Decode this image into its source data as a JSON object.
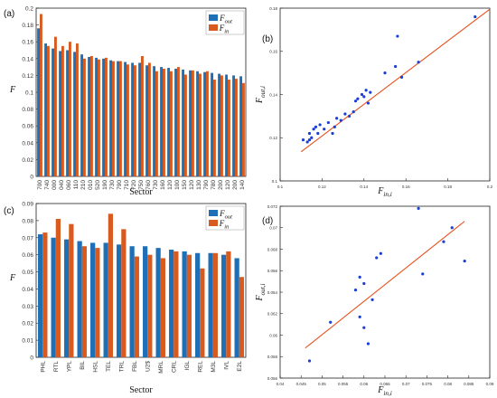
{
  "colors": {
    "out": "#1f6fb6",
    "in": "#d85a1e",
    "fit": "#e8501c",
    "point": "#1a3fd6"
  },
  "legend": {
    "out_base": "F",
    "out_sub": "out",
    "in_base": "F",
    "in_sub": "in"
  },
  "chart_data": [
    {
      "panel": "(a)",
      "type": "bar",
      "xlabel": "Sector",
      "ylabel": "F",
      "ylim": [
        0,
        0.2
      ],
      "yticks": [
        "0",
        "0.02",
        "0.04",
        "0.06",
        "0.08",
        "0.1",
        "0.12",
        "0.14",
        "0.16",
        "0.18",
        "0.2"
      ],
      "legend_position": "top-right",
      "grid": false,
      "categories": [
        "700",
        "740",
        "000",
        "040",
        "060",
        "110",
        "210",
        "010",
        "520",
        "190",
        "730",
        "790",
        "710",
        "720",
        "750",
        "760",
        "730",
        "160",
        "120",
        "100",
        "150",
        "120",
        "130",
        "790",
        "780",
        "200",
        "120",
        "200",
        "140"
      ],
      "series": [
        {
          "name": "F_out",
          "values": [
            0.176,
            0.158,
            0.152,
            0.149,
            0.15,
            0.148,
            0.145,
            0.142,
            0.141,
            0.14,
            0.138,
            0.137,
            0.136,
            0.135,
            0.135,
            0.132,
            0.131,
            0.13,
            0.129,
            0.128,
            0.127,
            0.126,
            0.125,
            0.124,
            0.123,
            0.122,
            0.121,
            0.12,
            0.119
          ]
        },
        {
          "name": "F_in",
          "values": [
            0.193,
            0.155,
            0.166,
            0.155,
            0.16,
            0.158,
            0.14,
            0.143,
            0.139,
            0.141,
            0.137,
            0.137,
            0.133,
            0.132,
            0.143,
            0.135,
            0.125,
            0.128,
            0.125,
            0.13,
            0.121,
            0.126,
            0.122,
            0.125,
            0.115,
            0.12,
            0.115,
            0.116,
            0.111
          ]
        }
      ]
    },
    {
      "panel": "(b)",
      "type": "scatter",
      "xlabel_base": "F",
      "xlabel_sub": "in,i",
      "ylabel_base": "F",
      "ylabel_sub": "out,i",
      "xlim": [
        0.1,
        0.2
      ],
      "ylim": [
        0.1,
        0.18
      ],
      "xticks": [
        "0.1",
        "0.12",
        "0.14",
        "0.16",
        "0.18",
        "0.2"
      ],
      "yticks": [
        "0.1",
        "0.12",
        "0.14",
        "0.16",
        "0.18"
      ],
      "fit_line": [
        [
          0.11,
          0.1135
        ],
        [
          0.2,
          0.1795
        ]
      ],
      "points": [
        [
          0.111,
          0.119
        ],
        [
          0.113,
          0.118
        ],
        [
          0.114,
          0.119
        ],
        [
          0.115,
          0.12
        ],
        [
          0.114,
          0.122
        ],
        [
          0.116,
          0.124
        ],
        [
          0.117,
          0.125
        ],
        [
          0.118,
          0.122
        ],
        [
          0.119,
          0.126
        ],
        [
          0.121,
          0.124
        ],
        [
          0.123,
          0.127
        ],
        [
          0.125,
          0.122
        ],
        [
          0.126,
          0.125
        ],
        [
          0.127,
          0.129
        ],
        [
          0.129,
          0.128
        ],
        [
          0.131,
          0.131
        ],
        [
          0.133,
          0.13
        ],
        [
          0.135,
          0.132
        ],
        [
          0.136,
          0.137
        ],
        [
          0.137,
          0.138
        ],
        [
          0.139,
          0.14
        ],
        [
          0.14,
          0.139
        ],
        [
          0.141,
          0.142
        ],
        [
          0.142,
          0.136
        ],
        [
          0.143,
          0.141
        ],
        [
          0.15,
          0.15
        ],
        [
          0.155,
          0.153
        ],
        [
          0.156,
          0.167
        ],
        [
          0.158,
          0.148
        ],
        [
          0.166,
          0.155
        ],
        [
          0.193,
          0.176
        ]
      ]
    },
    {
      "panel": "(c)",
      "type": "bar",
      "xlabel": "Sector",
      "ylabel": "F",
      "ylim": [
        0,
        0.09
      ],
      "yticks": [
        "0",
        "0.01",
        "0.02",
        "0.03",
        "0.04",
        "0.05",
        "0.06",
        "0.07",
        "0.08",
        "0.09"
      ],
      "legend_position": "top-right",
      "grid": false,
      "categories": [
        "PHL",
        "RTL",
        "YPL",
        "BIL",
        "HSL",
        "TEL",
        "TRL",
        "FBL",
        "U2$",
        "MRL",
        "CRL",
        "IGL",
        "REL",
        "M3L",
        "IVL",
        "E2L"
      ],
      "series": [
        {
          "name": "F_out",
          "values": [
            0.072,
            0.07,
            0.069,
            0.068,
            0.067,
            0.067,
            0.066,
            0.065,
            0.065,
            0.064,
            0.063,
            0.062,
            0.061,
            0.061,
            0.06,
            0.058
          ]
        },
        {
          "name": "F_in",
          "values": [
            0.073,
            0.081,
            0.078,
            0.065,
            0.064,
            0.084,
            0.075,
            0.059,
            0.06,
            0.058,
            0.062,
            0.06,
            0.052,
            0.061,
            0.062,
            0.047
          ]
        }
      ]
    },
    {
      "panel": "(d)",
      "type": "scatter",
      "xlabel_base": "F",
      "xlabel_sub": "in,i",
      "ylabel_base": "F",
      "ylabel_sub": "out,i",
      "xlim": [
        0.04,
        0.09
      ],
      "ylim": [
        0.056,
        0.072
      ],
      "xticks": [
        "0.04",
        "0.045",
        "0.05",
        "0.055",
        "0.06",
        "0.065",
        "0.07",
        "0.075",
        "0.08",
        "0.085",
        "0.09"
      ],
      "yticks": [
        "0.056",
        "0.058",
        "0.06",
        "0.062",
        "0.064",
        "0.066",
        "0.068",
        "0.07",
        "0.072"
      ],
      "fit_line": [
        [
          0.046,
          0.0588
        ],
        [
          0.084,
          0.0706
        ]
      ],
      "points": [
        [
          0.047,
          0.0576
        ],
        [
          0.052,
          0.0612
        ],
        [
          0.058,
          0.0642
        ],
        [
          0.059,
          0.0654
        ],
        [
          0.059,
          0.0617
        ],
        [
          0.06,
          0.0648
        ],
        [
          0.06,
          0.0607
        ],
        [
          0.061,
          0.0592
        ],
        [
          0.062,
          0.0633
        ],
        [
          0.063,
          0.0672
        ],
        [
          0.064,
          0.0676
        ],
        [
          0.073,
          0.0718
        ],
        [
          0.074,
          0.0657
        ],
        [
          0.079,
          0.0687
        ],
        [
          0.081,
          0.07
        ],
        [
          0.084,
          0.0669
        ]
      ]
    }
  ]
}
